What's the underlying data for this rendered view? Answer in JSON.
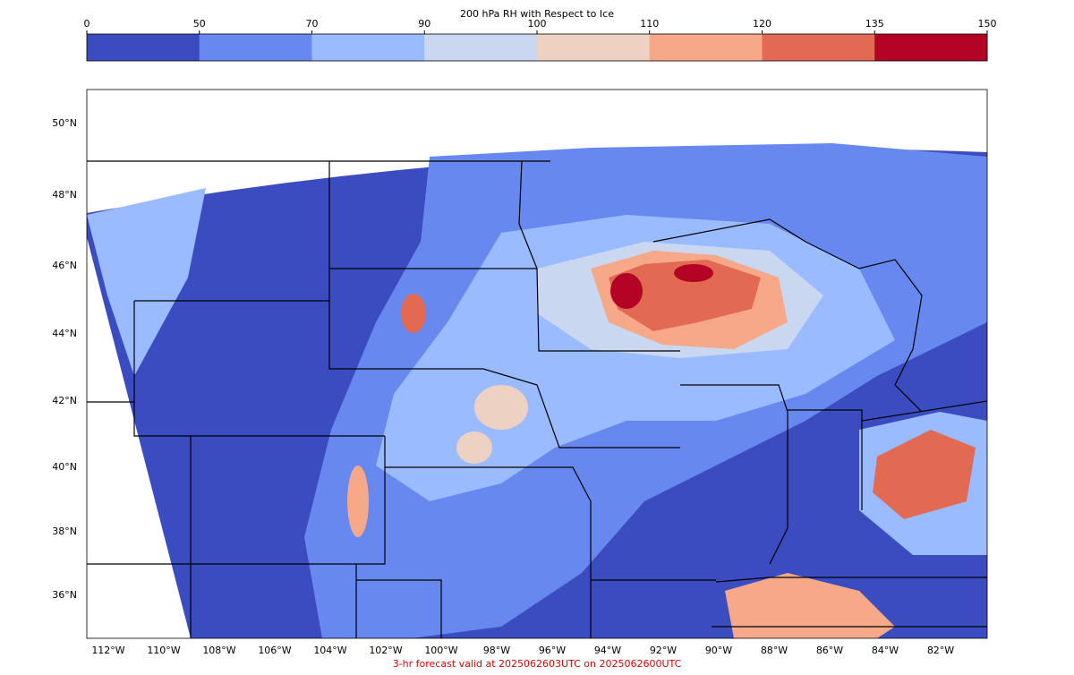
{
  "colorbar": {
    "title": "200 hPa RH with Respect to Ice",
    "ticks": [
      0,
      50,
      70,
      90,
      100,
      110,
      120,
      135,
      150
    ],
    "colors": [
      "#3b4cc0",
      "#6788ee",
      "#9abbff",
      "#c9d7f0",
      "#edd1c2",
      "#f7a889",
      "#e26952",
      "#b40426"
    ]
  },
  "map": {
    "lat_labels": [
      "50°N",
      "48°N",
      "46°N",
      "44°N",
      "42°N",
      "40°N",
      "38°N",
      "36°N"
    ],
    "lon_labels": [
      "112°W",
      "110°W",
      "108°W",
      "106°W",
      "104°W",
      "102°W",
      "100°W",
      "98°W",
      "96°W",
      "94°W",
      "92°W",
      "90°W",
      "88°W",
      "86°W",
      "84°W",
      "82°W"
    ]
  },
  "footer": "3-hr forecast valid at 2025062603UTC on 2025062600UTC"
}
